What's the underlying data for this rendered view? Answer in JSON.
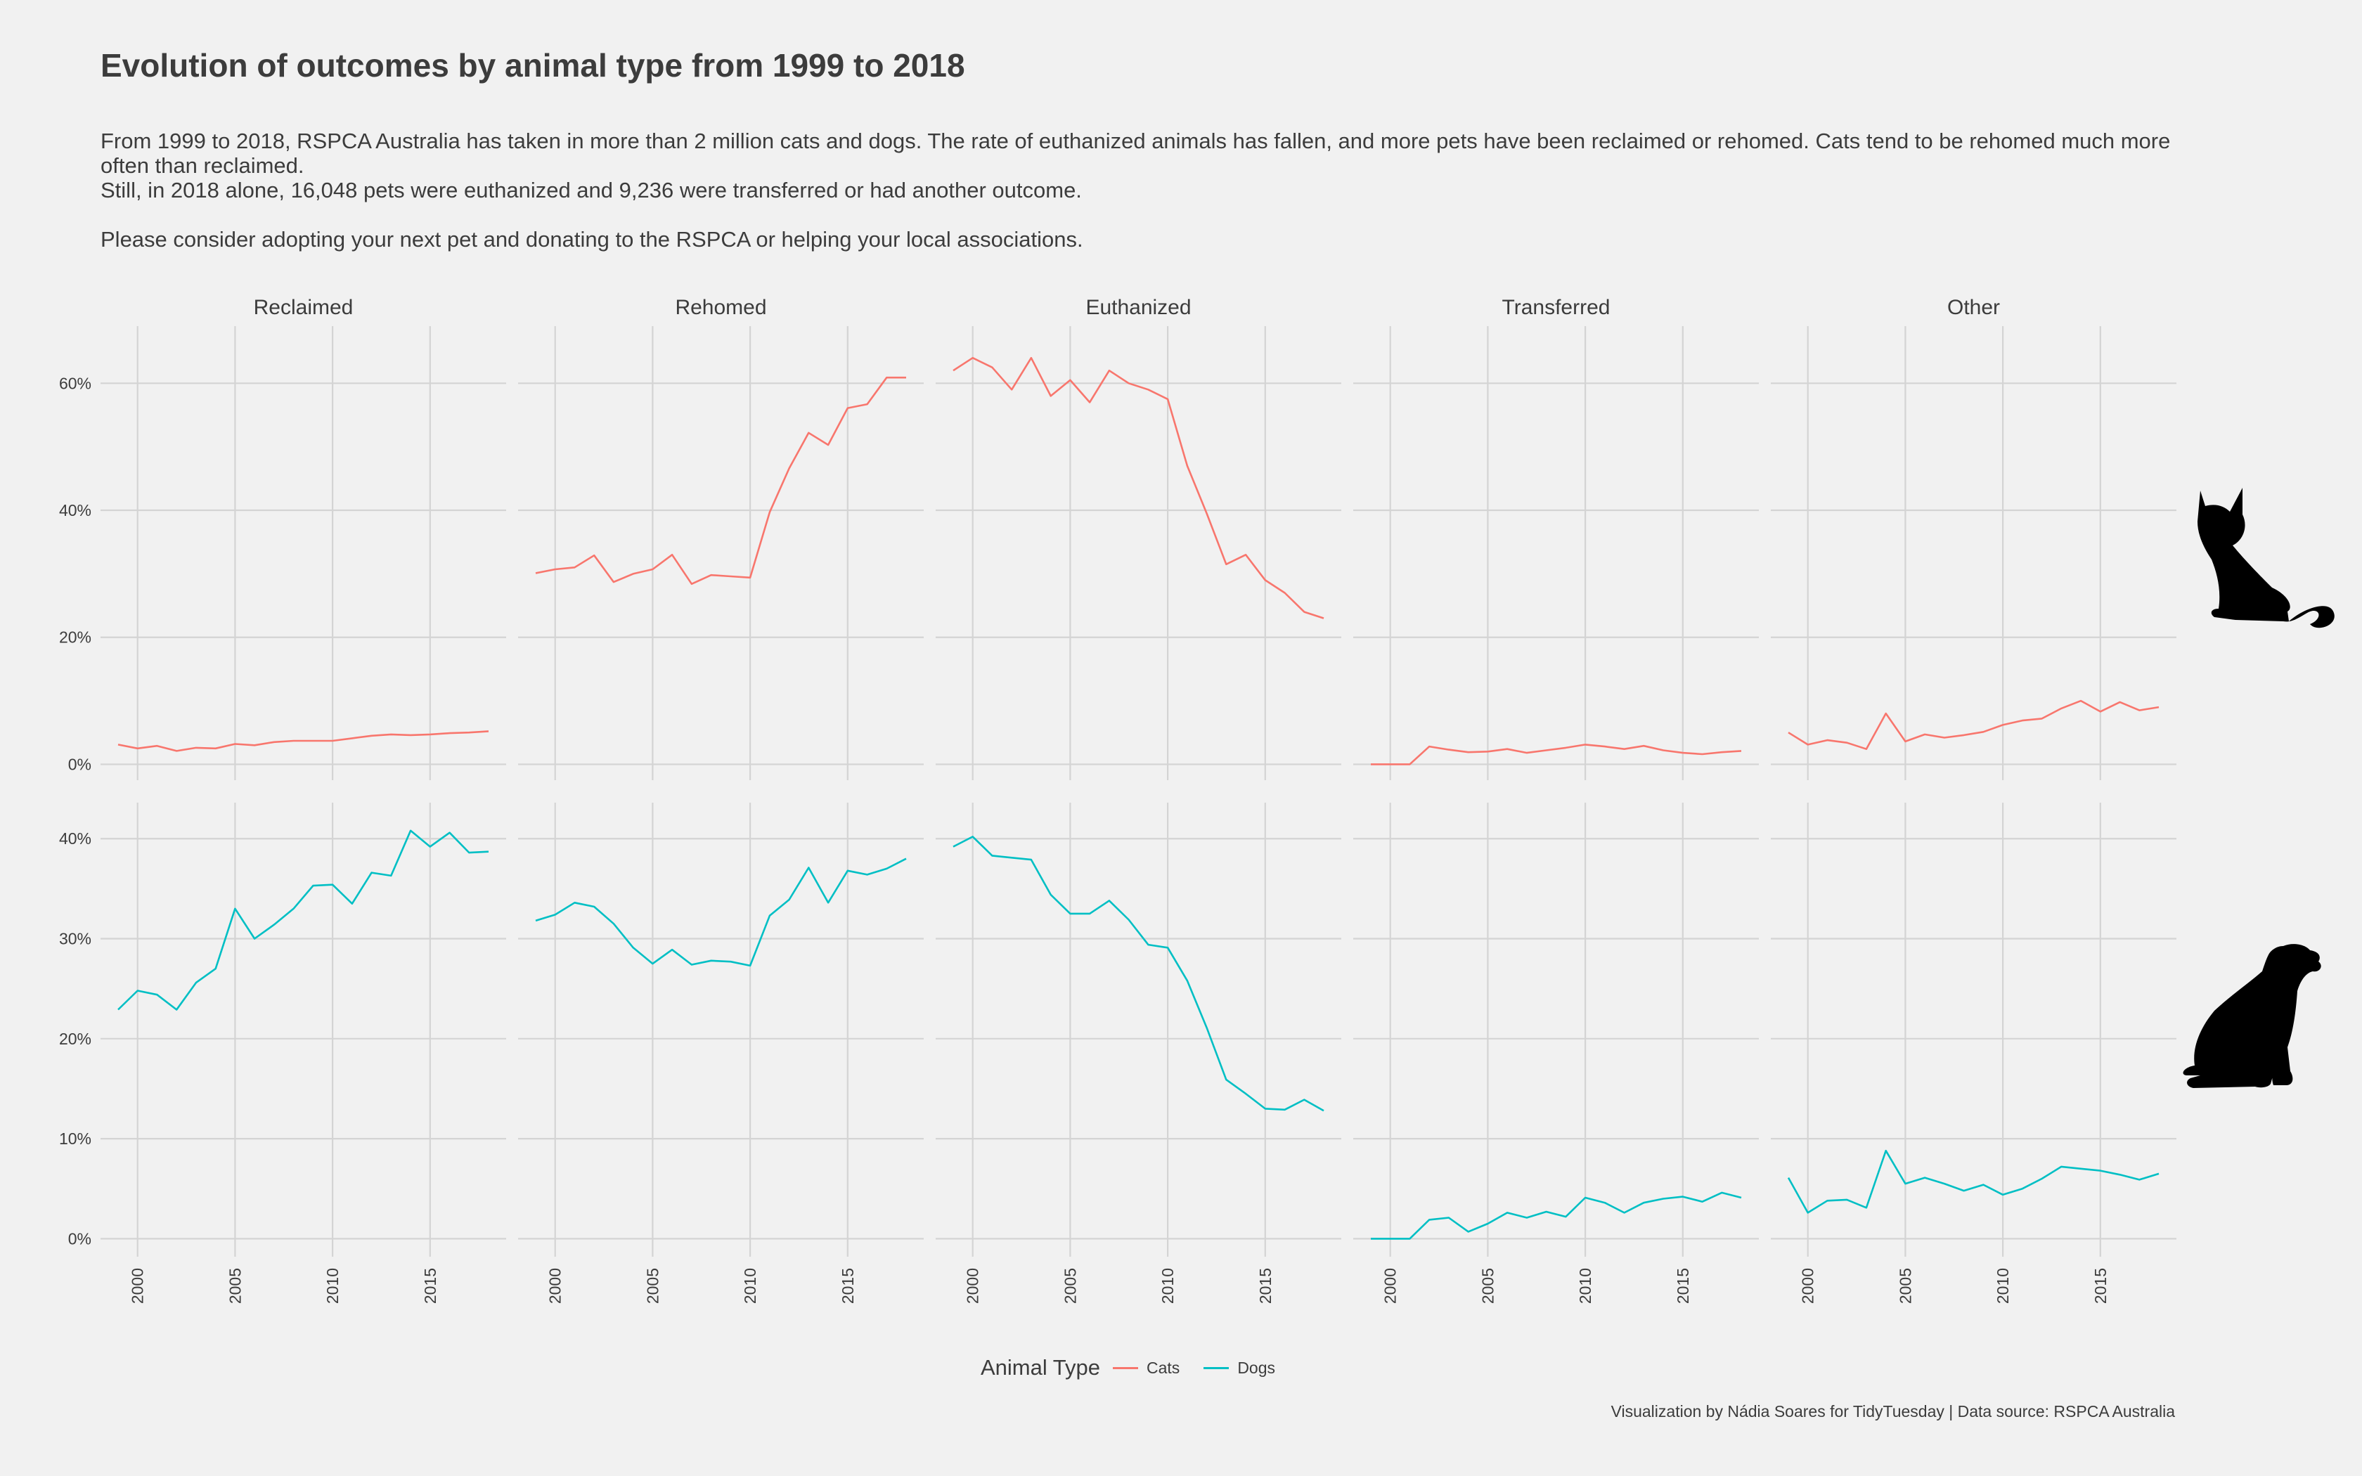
{
  "title": "Evolution of outcomes by animal type from 1999 to 2018",
  "subtitle": {
    "line1": "From 1999 to 2018, RSPCA Australia has taken in more than 2 million cats and dogs. The rate of euthanized animals has fallen, and more pets have been reclaimed or rehomed. Cats tend to be rehomed much more often than reclaimed.",
    "line2": "Still, in 2018 alone, 16,048 pets were euthanized and 9,236 were transferred or had another outcome.",
    "line3": "Please consider adopting your next pet and donating to the RSPCA or helping your local associations."
  },
  "caption": "Visualization by Nádia Soares for TidyTuesday | Data source: RSPCA Australia",
  "legend": {
    "title": "Animal Type",
    "items": [
      "Cats",
      "Dogs"
    ]
  },
  "colors": {
    "Cats": "#f8766d",
    "Dogs": "#00bfc4",
    "grid": "#d4d4d4",
    "background": "#f1f1f1"
  },
  "icons": {
    "top_row": "cat-silhouette-icon",
    "bottom_row": "dog-silhouette-icon"
  },
  "chart_data": {
    "type": "line",
    "facets": [
      "Reclaimed",
      "Rehomed",
      "Euthanized",
      "Transferred",
      "Other"
    ],
    "x": [
      1999,
      2000,
      2001,
      2002,
      2003,
      2004,
      2005,
      2006,
      2007,
      2008,
      2009,
      2010,
      2011,
      2012,
      2013,
      2014,
      2015,
      2016,
      2017,
      2018
    ],
    "x_ticks": [
      2000,
      2005,
      2010,
      2015
    ],
    "x_tick_labels": [
      "2000",
      "2005",
      "2010",
      "2015"
    ],
    "xlim": [
      1998.1,
      2018.9
    ],
    "rows": [
      {
        "animal": "Cats",
        "ylim": [
          -2.5,
          69
        ],
        "y_ticks": [
          0,
          20,
          40,
          60
        ],
        "y_tick_labels": [
          "0%",
          "20%",
          "40%",
          "60%"
        ],
        "series": {
          "Reclaimed": [
            3.1,
            2.5,
            2.9,
            2.1,
            2.6,
            2.5,
            3.2,
            3.0,
            3.5,
            3.7,
            3.7,
            3.7,
            4.1,
            4.5,
            4.7,
            4.6,
            4.7,
            4.9,
            5.0,
            5.2
          ],
          "Rehomed": [
            30.1,
            30.7,
            31.0,
            32.9,
            28.7,
            30.0,
            30.7,
            33.0,
            28.4,
            29.8,
            29.6,
            29.4,
            39.7,
            46.6,
            52.2,
            50.3,
            56.1,
            56.7,
            60.9,
            60.9
          ],
          "Euthanized": [
            62.0,
            64.0,
            62.5,
            59.0,
            64.0,
            58.0,
            60.5,
            57.0,
            62.0,
            60.0,
            59.0,
            57.5,
            47.0,
            39.5,
            31.5,
            33.0,
            29.0,
            27.0,
            24.0,
            23.0
          ],
          "Transferred": [
            0.0,
            0.0,
            0.0,
            2.8,
            2.3,
            1.9,
            2.0,
            2.4,
            1.8,
            2.2,
            2.6,
            3.1,
            2.8,
            2.4,
            2.9,
            2.2,
            1.8,
            1.6,
            1.9,
            2.1
          ],
          "Other": [
            5.0,
            3.1,
            3.8,
            3.4,
            2.4,
            8.0,
            3.6,
            4.7,
            4.2,
            4.6,
            5.1,
            6.2,
            6.9,
            7.2,
            8.8,
            10.0,
            8.3,
            9.8,
            8.5,
            9.0
          ]
        }
      },
      {
        "animal": "Dogs",
        "ylim": [
          -1.8,
          43.6
        ],
        "y_ticks": [
          0,
          10,
          20,
          30,
          40
        ],
        "y_tick_labels": [
          "0%",
          "10%",
          "20%",
          "30%",
          "40%"
        ],
        "series": {
          "Reclaimed": [
            22.9,
            24.8,
            24.4,
            22.9,
            25.6,
            27.0,
            33.0,
            30.0,
            31.4,
            33.0,
            35.3,
            35.4,
            33.5,
            36.6,
            36.3,
            40.8,
            39.2,
            40.6,
            38.6,
            38.7
          ],
          "Rehomed": [
            31.8,
            32.4,
            33.6,
            33.2,
            31.5,
            29.1,
            27.5,
            28.9,
            27.4,
            27.8,
            27.7,
            27.3,
            32.3,
            33.9,
            37.1,
            33.6,
            36.8,
            36.4,
            37.0,
            38.0
          ],
          "Euthanized": [
            39.2,
            40.2,
            38.3,
            38.1,
            37.9,
            34.4,
            32.5,
            32.5,
            33.8,
            31.9,
            29.4,
            29.1,
            25.8,
            21.1,
            15.9,
            14.5,
            13.0,
            12.9,
            13.9,
            12.8
          ],
          "Transferred": [
            0.0,
            0.0,
            0.0,
            1.9,
            2.1,
            0.7,
            1.5,
            2.6,
            2.1,
            2.7,
            2.2,
            4.1,
            3.6,
            2.6,
            3.6,
            4.0,
            4.2,
            3.7,
            4.6,
            4.1
          ],
          "Other": [
            6.1,
            2.6,
            3.8,
            3.9,
            3.1,
            8.8,
            5.5,
            6.1,
            5.5,
            4.8,
            5.4,
            4.4,
            5.0,
            6.0,
            7.2,
            7.0,
            6.8,
            6.4,
            5.9,
            6.5
          ]
        }
      }
    ]
  }
}
